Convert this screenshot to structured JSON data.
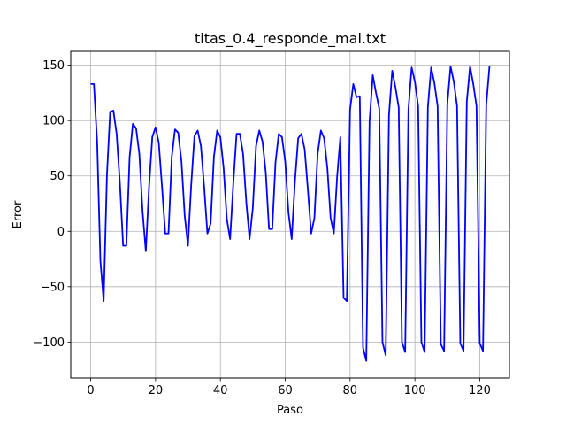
{
  "chart_data": {
    "type": "line",
    "title": "titas_0.4_responde_mal.txt",
    "xlabel": "Paso",
    "ylabel": "Error",
    "xlim": [
      -6.15,
      129.15
    ],
    "ylim": [
      -132.5,
      162.5
    ],
    "xticks": [
      0,
      20,
      40,
      60,
      80,
      100,
      120
    ],
    "yticks": [
      -100,
      -50,
      0,
      50,
      100,
      150
    ],
    "grid": true,
    "series": [
      {
        "color": "#0000ff",
        "x": [
          0,
          1,
          2,
          3,
          4,
          5,
          6,
          7,
          8,
          9,
          10,
          11,
          12,
          13,
          14,
          15,
          16,
          17,
          18,
          19,
          20,
          21,
          22,
          23,
          24,
          25,
          26,
          27,
          28,
          29,
          30,
          31,
          32,
          33,
          34,
          35,
          36,
          37,
          38,
          39,
          40,
          41,
          42,
          43,
          44,
          45,
          46,
          47,
          48,
          49,
          50,
          51,
          52,
          53,
          54,
          55,
          56,
          57,
          58,
          59,
          60,
          61,
          62,
          63,
          64,
          65,
          66,
          67,
          68,
          69,
          70,
          71,
          72,
          73,
          74,
          75,
          76,
          77,
          78,
          79,
          80,
          81,
          82,
          83,
          84,
          85,
          86,
          87,
          88,
          89,
          90,
          91,
          92,
          93,
          94,
          95,
          96,
          97,
          98,
          99,
          100,
          101,
          102,
          103,
          104,
          105,
          106,
          107,
          108,
          109,
          110,
          111,
          112,
          113,
          114,
          115,
          116,
          117,
          118,
          119,
          120,
          121,
          122,
          123
        ],
        "y": [
          133,
          133,
          80,
          -27,
          -63,
          50,
          108,
          109,
          88,
          44,
          -13,
          -13,
          67,
          97,
          93,
          70,
          18,
          -18,
          40,
          85,
          94,
          80,
          40,
          -2,
          -2,
          67,
          92,
          89,
          63,
          14,
          -13,
          42,
          86,
          91,
          77,
          40,
          -2,
          7,
          67,
          91,
          85,
          57,
          11,
          -7,
          44,
          88,
          88,
          70,
          26,
          -7,
          21,
          77,
          91,
          81,
          53,
          2,
          2,
          62,
          88,
          85,
          63,
          17,
          -7,
          45,
          84,
          88,
          74,
          37,
          -2,
          12,
          70,
          91,
          84,
          57,
          12,
          -2,
          49,
          85,
          -60,
          -63,
          110,
          133,
          121,
          122,
          -105,
          -117,
          99,
          141,
          125,
          111,
          -100,
          -112,
          105,
          145,
          130,
          112,
          -100,
          -109,
          110,
          148,
          135,
          113,
          -100,
          -109,
          112,
          148,
          134,
          113,
          -102,
          -108,
          115,
          149,
          135,
          113,
          -101,
          -108,
          117,
          149,
          133,
          113,
          -101,
          -108,
          114,
          149
        ]
      }
    ]
  }
}
